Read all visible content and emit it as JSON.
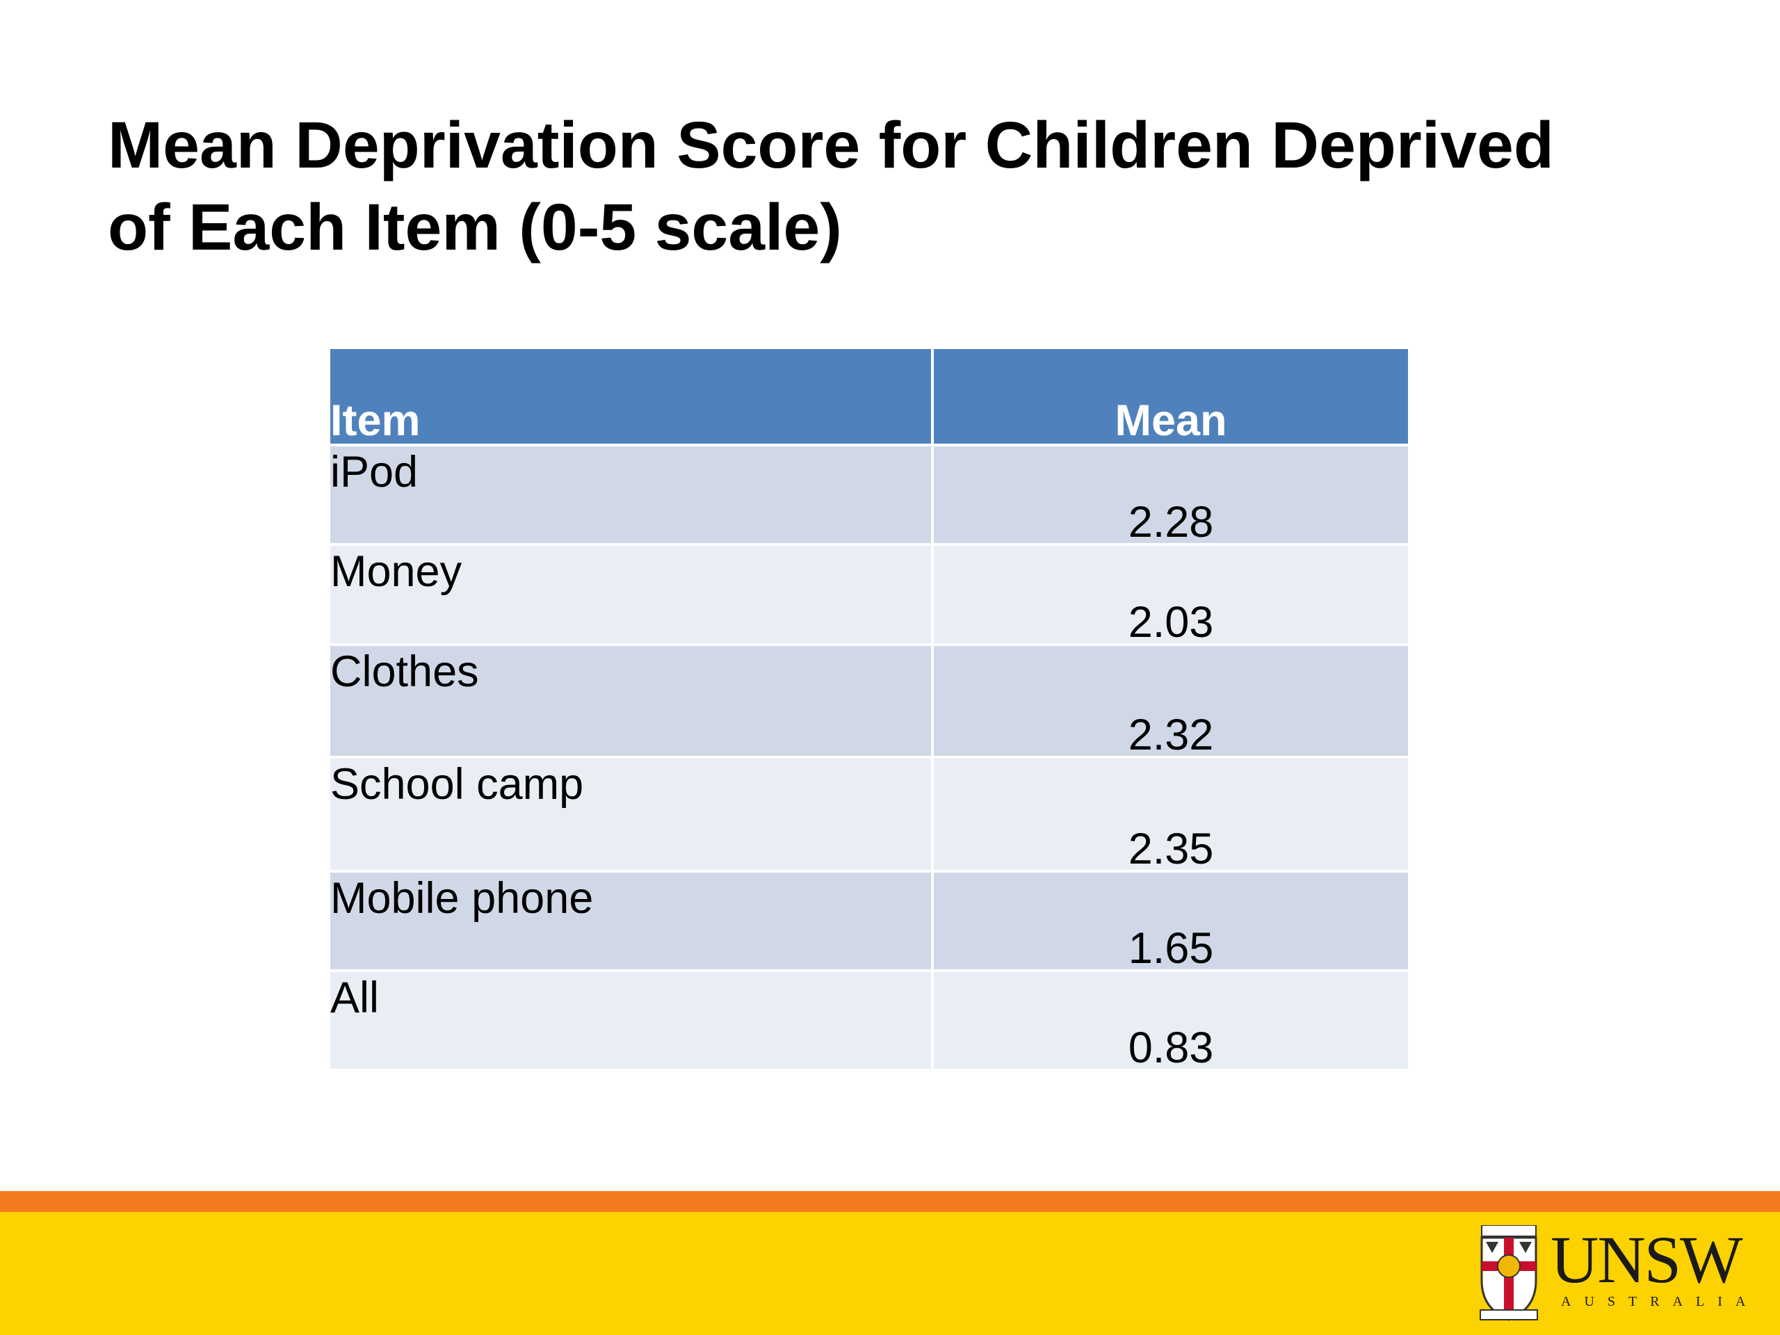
{
  "title": {
    "line1": "Mean Deprivation Score for Children Deprived",
    "line2": "of Each Item (0-5 scale)"
  },
  "table": {
    "headers": {
      "item": "Item",
      "mean": "Mean"
    },
    "rows": [
      {
        "item": "iPod",
        "mean": "2.28"
      },
      {
        "item": "Money",
        "mean": "2.03"
      },
      {
        "item": "Clothes",
        "mean": "2.32"
      },
      {
        "item": "School camp",
        "mean": "2.35"
      },
      {
        "item": "Mobile phone",
        "mean": "1.65"
      },
      {
        "item": "All",
        "mean": "0.83"
      }
    ]
  },
  "footer": {
    "brand": "UNSW",
    "brand_sub": "AUSTRALIA",
    "colors": {
      "orange": "#f47a20",
      "yellow": "#fdd201",
      "header_blue": "#4f81bd"
    }
  }
}
